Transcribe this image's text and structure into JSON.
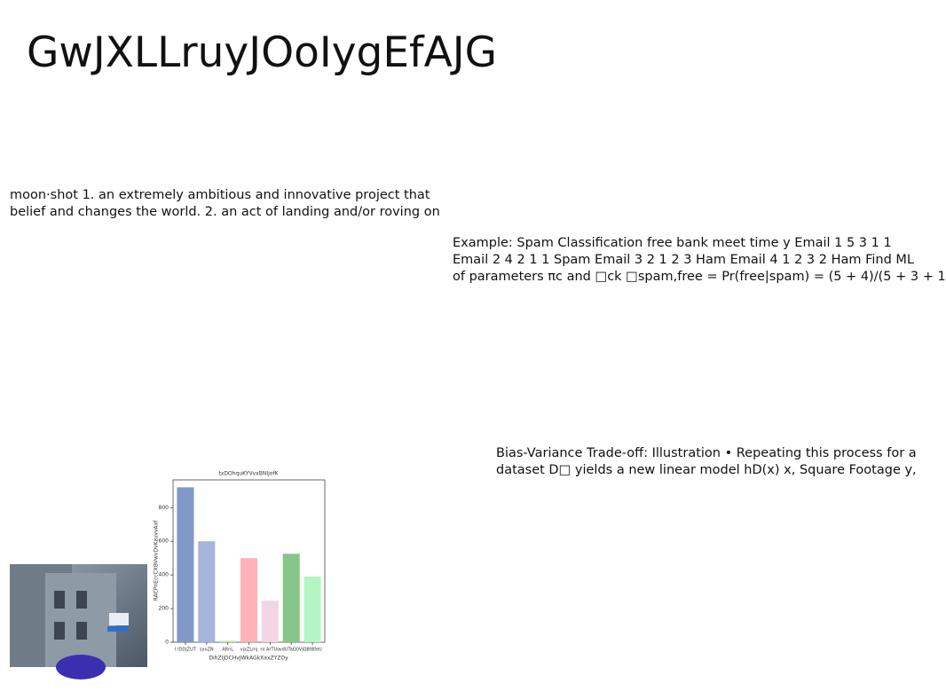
{
  "title": "GwJXLLruyJOoIygEfAJG",
  "text_blocks": [
    {
      "lines": [
        "moon·shot 1. an extremely ambitious and innovative project that",
        "belief and changes the world. 2. an act of landing and/or roving on"
      ]
    },
    {
      "lines": [
        "Example: Spam Classification free bank meet time y Email 1 5 3 1 1",
        "Email 2 4 2 1 1 Spam Email 3 2 1 2 3 Ham Email 4 1 2 3 2 Ham Find ML",
        "of parameters πc and □ck □spam,free = Pr(free|spam) = (5 + 4)/(5 + 3 + 1"
      ]
    },
    {
      "lines": [
        "Bias-Variance Trade-off: Illustration • Repeating this process for a",
        "dataset D□ yields a new linear model hD(x) x, Square Footage y,"
      ]
    }
  ],
  "chart_data": {
    "type": "bar",
    "title": "txDOhquKYVvxBNIjofK",
    "x_label": "DihZIjDCHvJWkAGkXaxZYZOy",
    "y_label": "RACPnEccCXBVwvDvKzuvvAxf",
    "categories": [
      "I IDDjZUT",
      "syoZN",
      "ARnL",
      "vjxZLmj",
      "ro ArTUo",
      "vdUTaQ0Vj",
      "QBtBfeU"
    ],
    "values": [
      921,
      600,
      10,
      500,
      247,
      526,
      390
    ],
    "colors": [
      "#8299c7",
      "#a6b3da",
      "#c9efb2",
      "#ffb3b8",
      "#f3d6e6",
      "#87c68a",
      "#b2f6c4"
    ],
    "ylim": [
      0,
      965
    ],
    "yticks": [
      0,
      200,
      400,
      600,
      800
    ]
  }
}
